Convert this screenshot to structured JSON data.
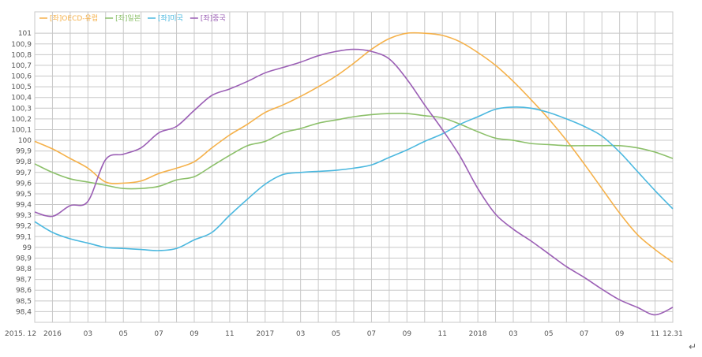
{
  "chart_data": {
    "type": "line",
    "title": "",
    "xlabel": "",
    "ylabel": "",
    "ylim": [
      98.3,
      101.2
    ],
    "y_ticks": [
      98.4,
      98.5,
      98.6,
      98.7,
      98.8,
      98.9,
      99,
      99.1,
      99.2,
      99.3,
      99.4,
      99.5,
      99.6,
      99.7,
      99.8,
      99.9,
      100,
      100.1,
      100.2,
      100.3,
      100.4,
      100.5,
      100.6,
      100.7,
      100.8,
      100.9,
      101
    ],
    "y_tick_labels": [
      "98,4",
      "98,5",
      "98,6",
      "98,7",
      "98,8",
      "98,9",
      "99",
      "99,1",
      "99,2",
      "99,3",
      "99,4",
      "99,5",
      "99,6",
      "99,7",
      "99,8",
      "99,9",
      "100",
      "100,1",
      "100,2",
      "100,3",
      "100,4",
      "100,5",
      "100,6",
      "100,7",
      "100,8",
      "100,9",
      "101"
    ],
    "x_tick_labels": [
      "2015. 12",
      "2016",
      "03",
      "05",
      "07",
      "09",
      "11",
      "2017",
      "03",
      "05",
      "07",
      "09",
      "11",
      "2018",
      "03",
      "05",
      "07",
      "09",
      "11",
      "12.31"
    ],
    "x_tick_months": [
      0,
      1,
      3,
      5,
      7,
      9,
      11,
      13,
      15,
      17,
      19,
      21,
      23,
      25,
      27,
      29,
      31,
      33,
      35,
      36
    ],
    "grid": true,
    "legend_position": "top-left",
    "series": [
      {
        "name": "[좌]OECD-유럽",
        "color": "#f5b14a",
        "values": [
          99.99,
          99.92,
          99.83,
          99.74,
          99.61,
          99.6,
          99.62,
          99.69,
          99.74,
          99.8,
          99.93,
          100.05,
          100.15,
          100.26,
          100.33,
          100.41,
          100.5,
          100.6,
          100.72,
          100.85,
          100.95,
          101.0,
          101.0,
          100.98,
          100.92,
          100.82,
          100.7,
          100.55,
          100.38,
          100.2,
          100.0,
          99.78,
          99.55,
          99.32,
          99.12,
          98.98,
          98.86
        ]
      },
      {
        "name": "[좌]일본",
        "color": "#8cc06a",
        "values": [
          99.78,
          99.7,
          99.64,
          99.61,
          99.58,
          99.55,
          99.55,
          99.57,
          99.63,
          99.66,
          99.76,
          99.86,
          99.95,
          99.99,
          100.07,
          100.11,
          100.16,
          100.19,
          100.22,
          100.24,
          100.25,
          100.25,
          100.23,
          100.21,
          100.15,
          100.08,
          100.02,
          100.0,
          99.97,
          99.96,
          99.95,
          99.95,
          99.95,
          99.95,
          99.93,
          99.89,
          99.83
        ]
      },
      {
        "name": "[좌]미국",
        "color": "#4bb8df",
        "values": [
          99.24,
          99.14,
          99.08,
          99.04,
          99.0,
          98.99,
          98.98,
          98.97,
          98.99,
          99.07,
          99.14,
          99.3,
          99.45,
          99.59,
          99.68,
          99.7,
          99.71,
          99.72,
          99.74,
          99.77,
          99.84,
          99.91,
          99.99,
          100.06,
          100.15,
          100.22,
          100.29,
          100.31,
          100.3,
          100.26,
          100.2,
          100.13,
          100.04,
          99.89,
          99.71,
          99.53,
          99.36
        ]
      },
      {
        "name": "[좌]중국",
        "color": "#9b5fb5",
        "values": [
          99.33,
          99.29,
          99.39,
          99.43,
          99.82,
          99.87,
          99.93,
          100.07,
          100.13,
          100.28,
          100.42,
          100.48,
          100.55,
          100.63,
          100.68,
          100.73,
          100.79,
          100.83,
          100.85,
          100.83,
          100.76,
          100.57,
          100.33,
          100.1,
          99.85,
          99.55,
          99.31,
          99.17,
          99.06,
          98.94,
          98.82,
          98.72,
          98.61,
          98.51,
          98.44,
          98.37,
          98.44
        ]
      }
    ]
  },
  "para_mark": "↵"
}
